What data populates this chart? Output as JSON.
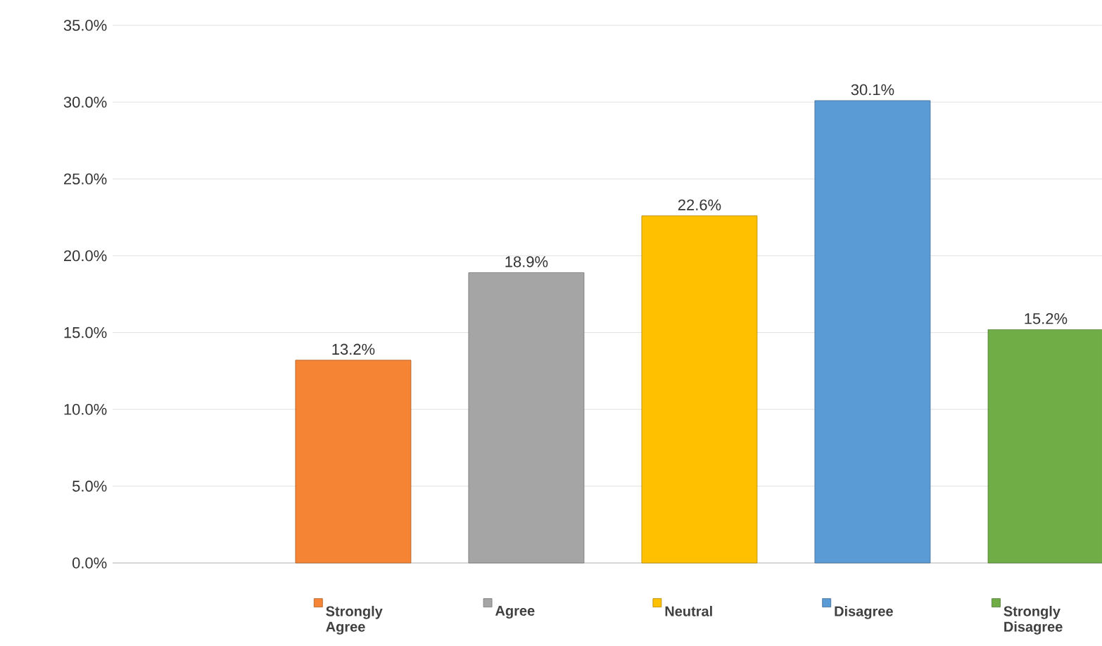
{
  "chart_data": {
    "type": "bar",
    "categories": [
      null
    ],
    "series": [
      {
        "name": "Strongly Agree",
        "color": "#f58535",
        "values": [
          13.2
        ],
        "value_labels": [
          "13.2%"
        ]
      },
      {
        "name": "Agree",
        "color": "#a5a5a5",
        "values": [
          18.9
        ],
        "value_labels": [
          "18.9%"
        ]
      },
      {
        "name": "Neutral",
        "color": "#ffc000",
        "values": [
          22.6
        ],
        "value_labels": [
          "22.6%"
        ]
      },
      {
        "name": "Disagree",
        "color": "#5b9bd5",
        "values": [
          30.1
        ],
        "value_labels": [
          "30.1%"
        ]
      },
      {
        "name": "Strongly Disagree",
        "color": "#70ad47",
        "values": [
          15.2
        ],
        "value_labels": [
          "15.2%"
        ]
      }
    ],
    "ylim": [
      0,
      35
    ],
    "yticks": [
      {
        "value": 0,
        "label": "0.0%"
      },
      {
        "value": 5,
        "label": "5.0%"
      },
      {
        "value": 10,
        "label": "10.0%"
      },
      {
        "value": 15,
        "label": "15.0%"
      },
      {
        "value": 20,
        "label": "20.0%"
      },
      {
        "value": 25,
        "label": "25.0%"
      },
      {
        "value": 30,
        "label": "30.0%"
      },
      {
        "value": 35,
        "label": "35.0%"
      }
    ],
    "grid": "y",
    "legend": "bottom"
  }
}
